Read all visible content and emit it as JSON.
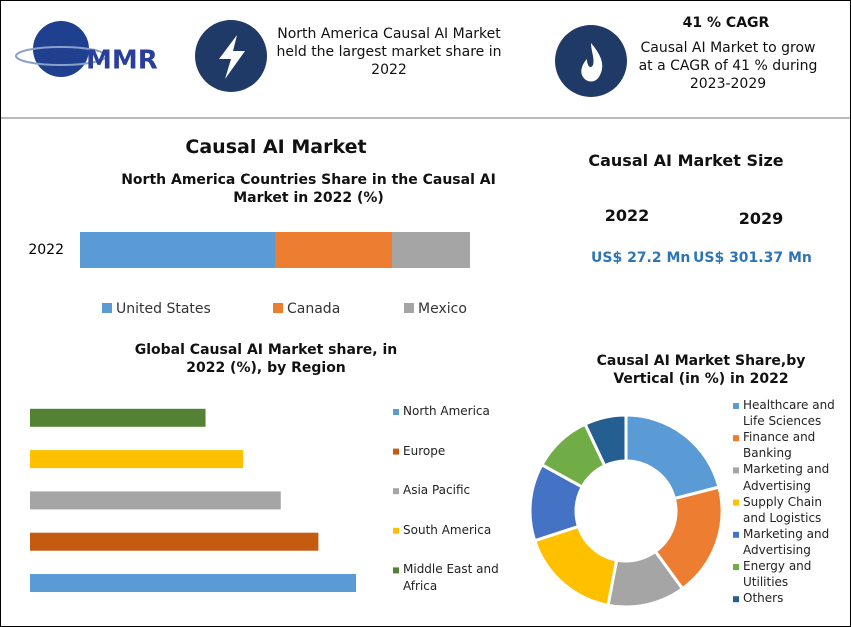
{
  "header": {
    "logo": "MMR",
    "fact": "North America Causal AI Market held the largest market share in 2022",
    "cagr_title": "41 % CAGR",
    "cagr_text": "Causal AI Market to grow at a CAGR of 41 % during 2023-2029"
  },
  "main_title": "Causal AI Market",
  "market_size": {
    "title": "Causal AI Market Size",
    "years": [
      "2022",
      "2029"
    ],
    "values": [
      "US$ 27.2 Mn",
      "US$ 301.37 Mn"
    ]
  },
  "chart_data": [
    {
      "type": "stacked-bar",
      "title": "North America Countries Share in the Causal AI Market in 2022 (%)",
      "categories": [
        "2022"
      ],
      "series": [
        {
          "name": "United States",
          "color": "#5b9bd5",
          "values": [
            50
          ]
        },
        {
          "name": "Canada",
          "color": "#ed7d31",
          "values": [
            30
          ]
        },
        {
          "name": "Mexico",
          "color": "#a5a5a5",
          "values": [
            20
          ]
        }
      ]
    },
    {
      "type": "hbar",
      "title": "Global Causal AI Market share, in 2022 (%), by Region",
      "categories": [
        "North America",
        "Europe",
        "Asia Pacific",
        "South America",
        "Middle East and Africa"
      ],
      "values": [
        26,
        23,
        20,
        17,
        14
      ],
      "colors": [
        "#5b9bd5",
        "#c55a11",
        "#a5a5a5",
        "#ffc000",
        "#548235"
      ]
    },
    {
      "type": "donut",
      "title": "Causal AI Market Share,by Vertical (in %) in 2022",
      "categories": [
        "Healthcare and Life Sciences",
        "Finance and Banking",
        "Marketing and Advertising",
        "Supply Chain and Logistics",
        "Marketing and Advertising",
        "Energy and Utilities",
        "Others"
      ],
      "values": [
        21,
        19,
        13,
        17,
        13,
        10,
        7
      ],
      "colors": [
        "#5b9bd5",
        "#ed7d31",
        "#a5a5a5",
        "#ffc000",
        "#4472c4",
        "#70ad47",
        "#255e91"
      ]
    }
  ]
}
